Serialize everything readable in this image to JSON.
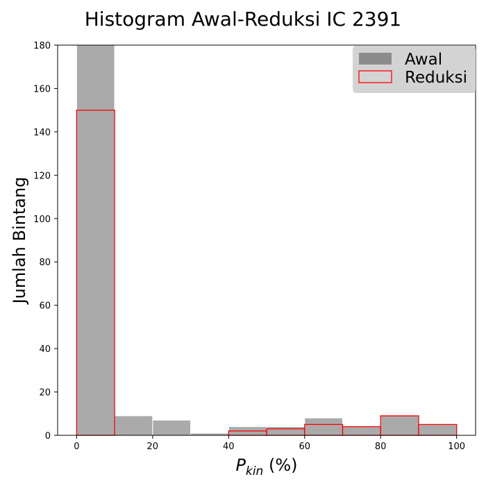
{
  "chart_data": {
    "type": "bar",
    "title": "Histogram Awal-Reduksi IC 2391",
    "xlabel": {
      "main": "P",
      "sub": "kin",
      "suffix": " (%)"
    },
    "ylabel": "Jumlah Bintang",
    "xlim": [
      -5,
      105
    ],
    "ylim": [
      0,
      180
    ],
    "xticks": [
      0,
      20,
      40,
      60,
      80,
      100
    ],
    "yticks": [
      0,
      20,
      40,
      60,
      80,
      100,
      120,
      140,
      160,
      180
    ],
    "bin_edges": [
      0,
      10,
      20,
      30,
      40,
      50,
      60,
      70,
      80,
      90,
      100
    ],
    "series": [
      {
        "name": "Awal",
        "style": "filled",
        "fill": "#aaaaaa",
        "legend_fill": "#8c8c8c",
        "edge": "#ffffff",
        "values": [
          180,
          9,
          7,
          1,
          4,
          4,
          8,
          4,
          9,
          5
        ]
      },
      {
        "name": "Reduksi",
        "style": "outline",
        "edge": "#ff0000",
        "values": [
          150,
          0,
          0,
          0,
          2,
          3,
          5,
          4,
          9,
          5
        ]
      }
    ],
    "legend_position": "top-right",
    "grid": false
  }
}
